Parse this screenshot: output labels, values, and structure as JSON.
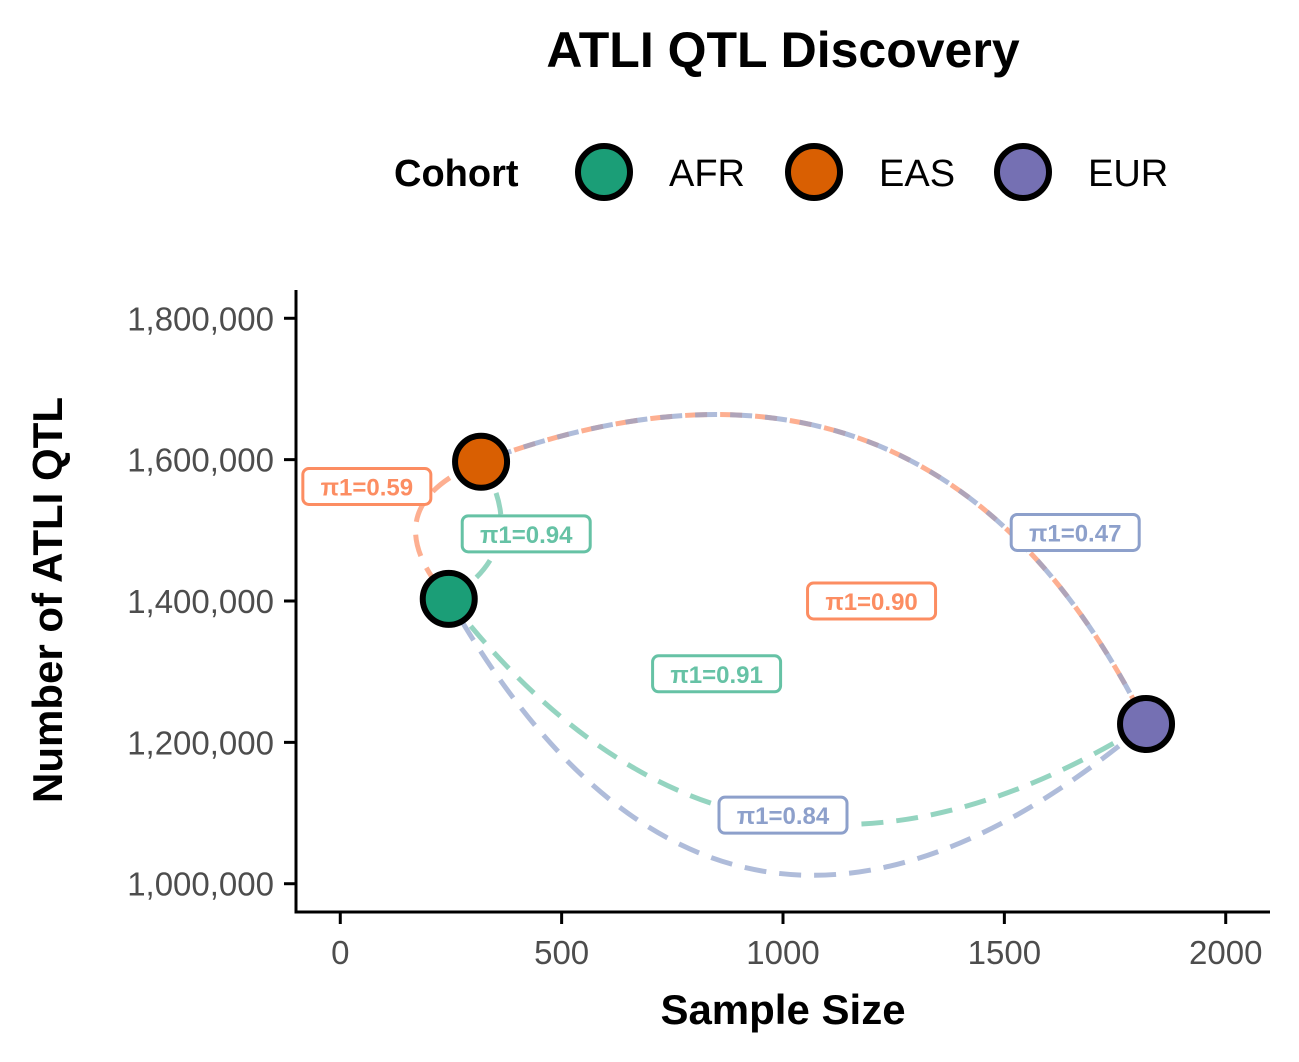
{
  "chart_data": {
    "type": "scatter",
    "title": "ATLI QTL Discovery",
    "xlabel": "Sample Size",
    "ylabel": "Number of ATLI QTL",
    "xlim": [
      -100,
      2100
    ],
    "ylim": [
      960000,
      1840000
    ],
    "x_ticks": [
      0,
      500,
      1000,
      1500,
      2000
    ],
    "x_tick_labels": [
      "0",
      "500",
      "1000",
      "1500",
      "2000"
    ],
    "y_ticks": [
      1000000,
      1200000,
      1400000,
      1600000,
      1800000
    ],
    "y_tick_labels": [
      "1,000,000",
      "1,200,000",
      "1,400,000",
      "1,600,000",
      "1,800,000"
    ],
    "grid": false,
    "legend": {
      "title": "Cohort",
      "position": "top",
      "entries": [
        "AFR",
        "EAS",
        "EUR"
      ]
    },
    "colors": {
      "AFR": "#1b9e77",
      "EAS": "#d95f02",
      "EUR": "#7570b3",
      "AFR_arrow": "#66c2a5",
      "EAS_arrow": "#fc8d62",
      "EUR_arrow": "#8da0cb"
    },
    "points": [
      {
        "cohort": "AFR",
        "x": 245,
        "y": 1403000
      },
      {
        "cohort": "EAS",
        "x": 318,
        "y": 1597000
      },
      {
        "cohort": "EUR",
        "x": 1820,
        "y": 1226000
      }
    ],
    "replication_arrows": [
      {
        "from": "EAS",
        "to": "AFR",
        "label": "π1=0.59",
        "label_x": 60,
        "label_y": 1562000,
        "curvature": 0.7
      },
      {
        "from": "AFR",
        "to": "EAS",
        "label": "π1=0.94",
        "label_x": 420,
        "label_y": 1495000,
        "curvature": 0.5
      },
      {
        "from": "EAS",
        "to": "EUR",
        "label": "π1=0.90",
        "label_x": 1200,
        "label_y": 1400000,
        "curvature": -0.45
      },
      {
        "from": "EUR",
        "to": "EAS",
        "label": "π1=0.47",
        "label_x": 1660,
        "label_y": 1497000,
        "curvature": 0.45
      },
      {
        "from": "AFR",
        "to": "EUR",
        "label": "π1=0.91",
        "label_x": 850,
        "label_y": 1297000,
        "curvature": 0.45
      },
      {
        "from": "EUR",
        "to": "AFR",
        "label": "π1=0.84",
        "label_x": 1000,
        "label_y": 1097000,
        "curvature": -0.6
      }
    ]
  }
}
